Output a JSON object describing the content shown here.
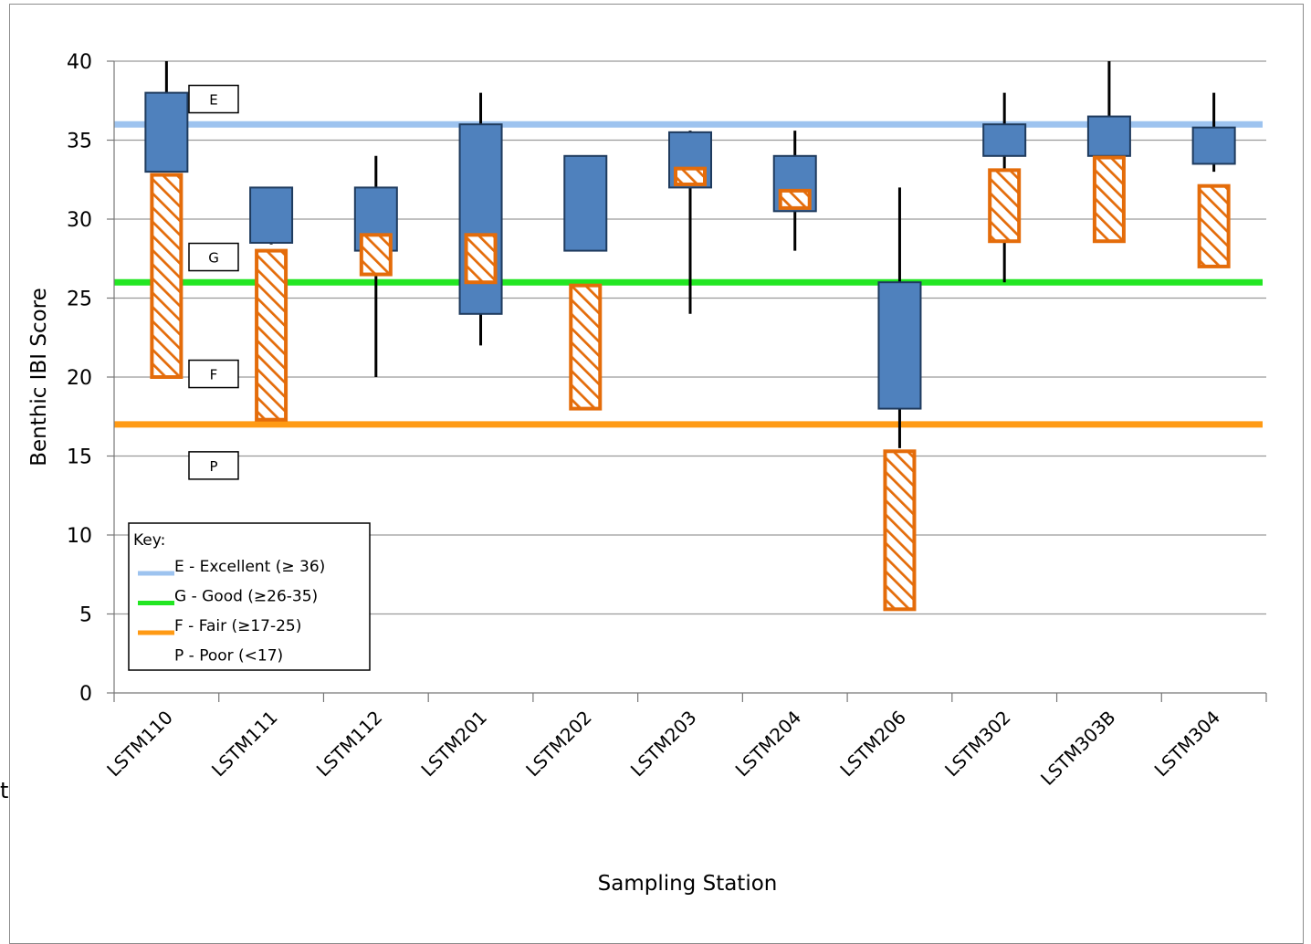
{
  "chart_data": {
    "type": "box",
    "title": "",
    "xlabel": "Sampling Station",
    "ylabel": "Benthic IBI Score",
    "ylim": [
      0,
      40
    ],
    "yticks": [
      0,
      5,
      10,
      15,
      20,
      25,
      30,
      35,
      40
    ],
    "grid": true,
    "categories": [
      "LSTM110",
      "LSTM111",
      "LSTM112",
      "LSTM201",
      "LSTM202",
      "LSTM203",
      "LSTM204",
      "LSTM206",
      "LSTM302",
      "LSTM303B",
      "LSTM304"
    ],
    "blue_boxes": [
      {
        "min": 40,
        "max": 40,
        "low": 33,
        "high": 38
      },
      {
        "min": 28.4,
        "max": 28.4,
        "low": 28.5,
        "high": 32
      },
      {
        "min": 20,
        "max": 34,
        "low": 28,
        "high": 32
      },
      {
        "min": 22,
        "max": 38,
        "low": 24,
        "high": 36
      },
      {
        "min": 28,
        "max": 28,
        "low": 28,
        "high": 34
      },
      {
        "min": 24,
        "max": 35.6,
        "low": 32,
        "high": 35.5
      },
      {
        "min": 28,
        "max": 35.6,
        "low": 30.5,
        "high": 34
      },
      {
        "min": 15.5,
        "max": 32,
        "low": 18,
        "high": 26
      },
      {
        "min": 26,
        "max": 38,
        "low": 34,
        "high": 36
      },
      {
        "min": 34,
        "max": 40,
        "low": 34,
        "high": 36.5
      },
      {
        "min": 33,
        "max": 38,
        "low": 33.5,
        "high": 35.8
      }
    ],
    "hatched_boxes": [
      {
        "low": 20,
        "high": 32.8
      },
      {
        "low": 17.3,
        "high": 28
      },
      {
        "low": 26.5,
        "high": 29
      },
      {
        "low": 26,
        "high": 29
      },
      {
        "low": 18,
        "high": 25.8
      },
      {
        "low": 32.2,
        "high": 33.2
      },
      {
        "low": 30.7,
        "high": 31.8
      },
      {
        "low": 5.3,
        "high": 15.3
      },
      {
        "low": 28.6,
        "high": 33.1
      },
      {
        "low": 28.6,
        "high": 33.9
      },
      {
        "low": 27,
        "high": 32.1
      }
    ],
    "thresholds": [
      {
        "label": "E",
        "value": 36,
        "color": "#9dc3ef"
      },
      {
        "label": "G",
        "value": 26,
        "color": "#22e622"
      },
      {
        "label": "F",
        "value": 17,
        "color": "#ff9a14"
      }
    ],
    "band_labels": [
      {
        "text": "E",
        "y": 37.6
      },
      {
        "text": "G",
        "y": 27.6
      },
      {
        "text": "F",
        "y": 20.2
      },
      {
        "text": "P",
        "y": 14.4
      }
    ],
    "colors": {
      "box_fill": "#4f81bd",
      "box_stroke": "#1f3b5e",
      "hatch": "#e46c0a",
      "grid": "#9a9a9a"
    },
    "legend": {
      "title": "Key:",
      "entries": [
        {
          "text": "E - Excellent (≥ 36)",
          "color": "#9dc3ef"
        },
        {
          "text": "G - Good (≥26-35)",
          "color": "#22e622"
        },
        {
          "text": "F - Fair (≥17-25)",
          "color": "#ff9a14"
        },
        {
          "text": "P - Poor (<17)",
          "color": ""
        }
      ]
    }
  },
  "stray_text": "t"
}
